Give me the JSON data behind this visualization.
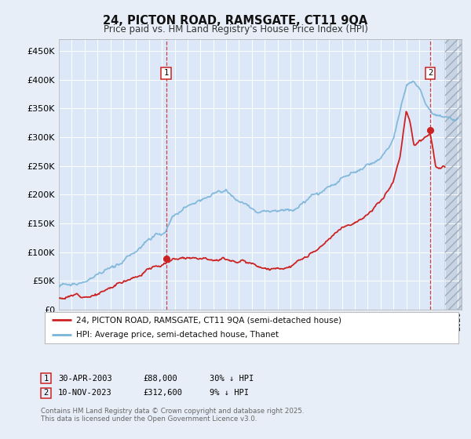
{
  "title_line1": "24, PICTON ROAD, RAMSGATE, CT11 9QA",
  "title_line2": "Price paid vs. HM Land Registry's House Price Index (HPI)",
  "ytick_values": [
    0,
    50000,
    100000,
    150000,
    200000,
    250000,
    300000,
    350000,
    400000,
    450000
  ],
  "ylim": [
    0,
    470000
  ],
  "xlim_start": 1995.0,
  "xlim_end": 2026.3,
  "hpi_color": "#7ab4d8",
  "price_color": "#cc2222",
  "marker1_x": 2003.33,
  "marker1_y": 88000,
  "marker2_x": 2023.87,
  "marker2_y": 312600,
  "vline1_x": 2003.33,
  "vline2_x": 2023.87,
  "legend_label1": "24, PICTON ROAD, RAMSGATE, CT11 9QA (semi-detached house)",
  "legend_label2": "HPI: Average price, semi-detached house, Thanet",
  "table_row1": [
    "1",
    "30-APR-2003",
    "£88,000",
    "30% ↓ HPI"
  ],
  "table_row2": [
    "2",
    "10-NOV-2023",
    "£312,600",
    "9% ↓ HPI"
  ],
  "footnote": "Contains HM Land Registry data © Crown copyright and database right 2025.\nThis data is licensed under the Open Government Licence v3.0.",
  "background_color": "#e8eef8",
  "plot_bg_color": "#dce8f8",
  "hatch_color": "#c8d4e4",
  "grid_color": "#ffffff"
}
